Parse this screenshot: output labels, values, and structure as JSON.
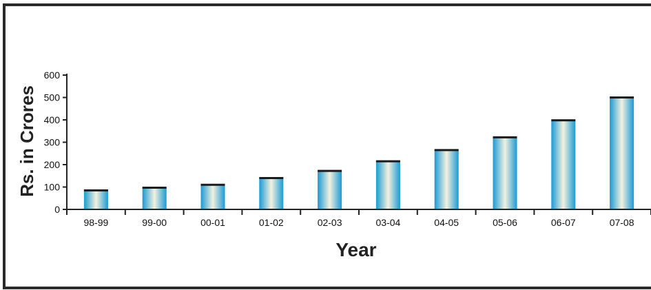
{
  "chart_data": {
    "type": "bar",
    "title": "",
    "xlabel": "Year",
    "ylabel": "Rs. in Crores",
    "categories": [
      "98-99",
      "99-00",
      "00-01",
      "01-02",
      "02-03",
      "03-04",
      "04-05",
      "05-06",
      "06-07",
      "07-08"
    ],
    "values": [
      85,
      97,
      110,
      140,
      172,
      215,
      265,
      322,
      398,
      500
    ],
    "ylim": [
      0,
      600
    ],
    "yticks": [
      0,
      100,
      200,
      300,
      400,
      500,
      600
    ],
    "ytick_labels": [
      "0",
      "100",
      "200",
      "300",
      "400",
      "500",
      "600"
    ],
    "grid": false,
    "legend": "none",
    "colors": {
      "bar_edge": "#1a9ad6",
      "bar_center": "#f4f1df",
      "bar_cap": "#1b1b1b",
      "axis": "#222222"
    }
  }
}
